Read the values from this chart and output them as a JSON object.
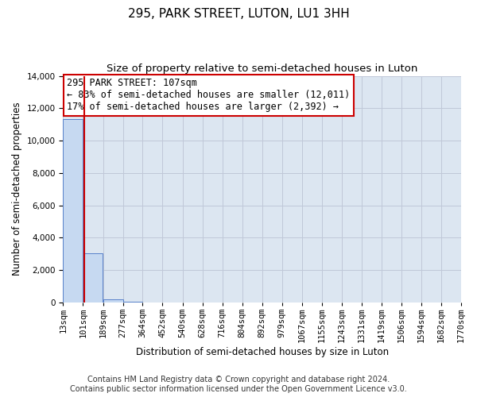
{
  "title": "295, PARK STREET, LUTON, LU1 3HH",
  "subtitle": "Size of property relative to semi-detached houses in Luton",
  "xlabel": "Distribution of semi-detached houses by size in Luton",
  "ylabel": "Number of semi-detached properties",
  "annotation_title": "295 PARK STREET: 107sqm",
  "annotation_line1": "← 83% of semi-detached houses are smaller (12,011)",
  "annotation_line2": "17% of semi-detached houses are larger (2,392) →",
  "footer1": "Contains HM Land Registry data © Crown copyright and database right 2024.",
  "footer2": "Contains public sector information licensed under the Open Government Licence v3.0.",
  "property_size": 107,
  "bar_left_edges": [
    13,
    101,
    189,
    277,
    364,
    452,
    540,
    628,
    716,
    804,
    892,
    979,
    1067,
    1155,
    1243,
    1331,
    1419,
    1506,
    1594,
    1682
  ],
  "bar_widths": [
    88,
    88,
    88,
    87,
    88,
    88,
    88,
    88,
    88,
    88,
    87,
    88,
    88,
    88,
    88,
    88,
    87,
    88,
    88,
    88
  ],
  "bar_heights": [
    11350,
    3050,
    175,
    25,
    10,
    5,
    3,
    2,
    1,
    1,
    1,
    0,
    0,
    0,
    0,
    0,
    0,
    0,
    0,
    0
  ],
  "bar_color": "#c6d9f1",
  "bar_edge_color": "#4472c4",
  "red_line_color": "#cc0000",
  "annotation_box_edge": "#cc0000",
  "annotation_box_face": "#ffffff",
  "grid_color": "#c0c8d8",
  "plot_background": "#dce6f1",
  "ylim": [
    0,
    14000
  ],
  "yticks": [
    0,
    2000,
    4000,
    6000,
    8000,
    10000,
    12000,
    14000
  ],
  "xtick_labels": [
    "13sqm",
    "101sqm",
    "189sqm",
    "277sqm",
    "364sqm",
    "452sqm",
    "540sqm",
    "628sqm",
    "716sqm",
    "804sqm",
    "892sqm",
    "979sqm",
    "1067sqm",
    "1155sqm",
    "1243sqm",
    "1331sqm",
    "1419sqm",
    "1506sqm",
    "1594sqm",
    "1682sqm",
    "1770sqm"
  ],
  "title_fontsize": 11,
  "subtitle_fontsize": 9.5,
  "axis_label_fontsize": 8.5,
  "tick_fontsize": 7.5,
  "footer_fontsize": 7,
  "annotation_fontsize": 8.5
}
